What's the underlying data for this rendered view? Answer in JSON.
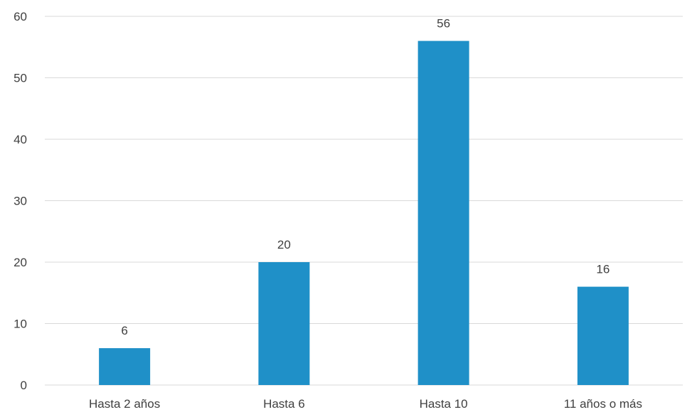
{
  "chart_data": {
    "type": "bar",
    "title": "",
    "xlabel": "",
    "ylabel": "",
    "categories": [
      "Hasta 2 años",
      "Hasta 6",
      "Hasta 10",
      "11 años o más"
    ],
    "values": [
      6,
      20,
      56,
      16
    ],
    "data_labels": [
      "6",
      "20",
      "56",
      "16"
    ],
    "ylim": [
      0,
      60
    ],
    "yticks": [
      0,
      10,
      20,
      30,
      40,
      50,
      60
    ],
    "ytick_labels": [
      "0",
      "10",
      "20",
      "30",
      "40",
      "50",
      "60"
    ],
    "grid": true,
    "legend": "none",
    "bar_color": "#1f90c8",
    "grid_color": "#d9d9d9",
    "text_color": "#404040"
  }
}
